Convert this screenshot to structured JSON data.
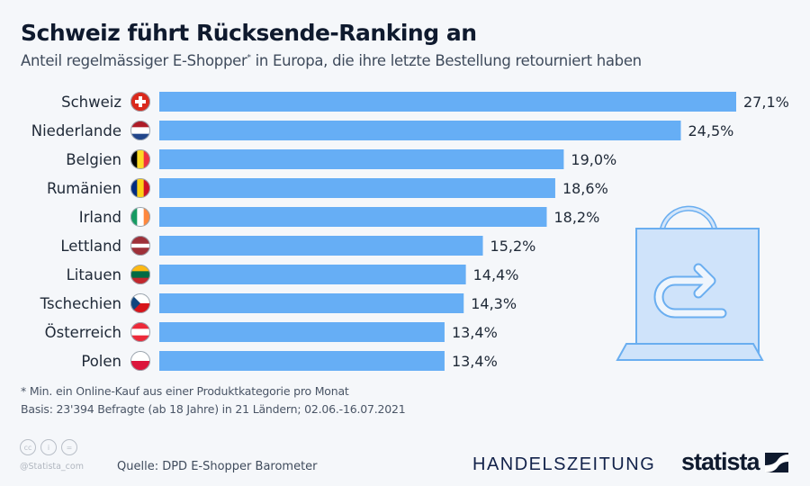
{
  "header": {
    "title": "Schweiz führt Rücksende-Ranking an",
    "subtitle": "Anteil regelmässiger E-Shopper",
    "subtitle_mark": "*",
    "subtitle_rest": " in Europa, die ihre letzte Bestellung retourniert haben"
  },
  "chart_data": {
    "type": "bar",
    "orientation": "horizontal",
    "title": "Schweiz führt Rücksende-Ranking an",
    "categories": [
      "Schweiz",
      "Niederlande",
      "Belgien",
      "Rumänien",
      "Irland",
      "Lettland",
      "Litauen",
      "Tschechien",
      "Österreich",
      "Polen"
    ],
    "flags": [
      "switzerland-flag-icon",
      "netherlands-flag-icon",
      "belgium-flag-icon",
      "romania-flag-icon",
      "ireland-flag-icon",
      "latvia-flag-icon",
      "lithuania-flag-icon",
      "czechia-flag-icon",
      "austria-flag-icon",
      "poland-flag-icon"
    ],
    "values": [
      27.1,
      24.5,
      19.0,
      18.6,
      18.2,
      15.2,
      14.4,
      14.3,
      13.4,
      13.4
    ],
    "value_labels": [
      "27,1%",
      "24,5%",
      "19,0%",
      "18,6%",
      "18,2%",
      "15,2%",
      "14,4%",
      "14,3%",
      "13,4%",
      "13,4%"
    ],
    "unit": "%",
    "xlim": [
      0,
      27.1
    ],
    "grid": false,
    "bar_color": "#66aef5"
  },
  "icons": {
    "illustration": "shopping-bag-return-icon"
  },
  "footer": {
    "note": "* Min. ein Online-Kauf aus einer Produktkategorie pro Monat",
    "basis": "Basis: 23'394 Befragte (ab 18 Jahre) in 21 Ländern; 02.06.-16.07.2021",
    "handle": "@Statista_com",
    "source": "Quelle: DPD E-Shopper Barometer",
    "partner": "HANDELSZEITUNG",
    "brand": "statista",
    "cc_icons": [
      "cc",
      "i",
      "="
    ]
  }
}
